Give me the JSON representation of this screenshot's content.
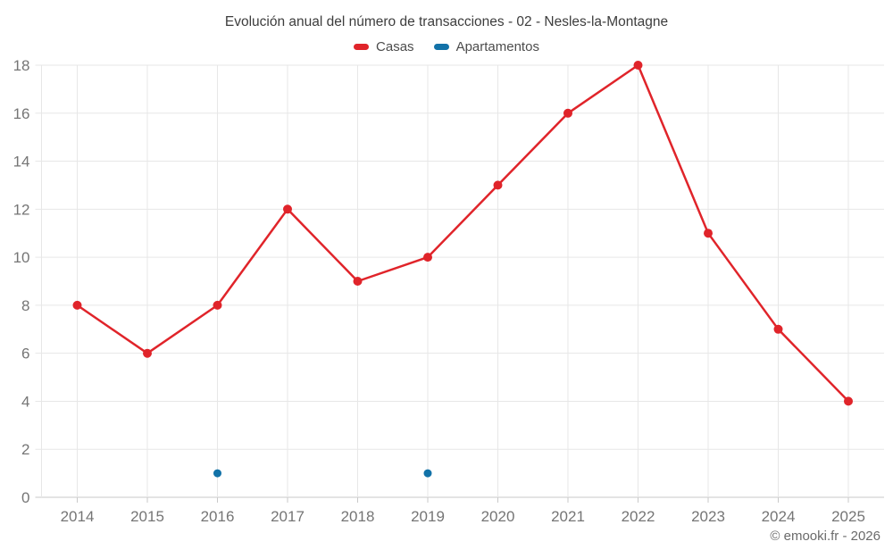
{
  "page": {
    "footer_credit": "© emooki.fr - 2026"
  },
  "colors": {
    "background": "#ffffff",
    "grid": "#e7e7e7",
    "axis": "#c9c9c9",
    "tick_text": "#757575",
    "title_text": "#3d3d3d",
    "legend_text": "#4c4c4c",
    "footer_text": "#6b6b6b",
    "casas_red": "#e0242a",
    "apartamentos_blue": "#1272a8"
  },
  "chart_data": {
    "type": "line",
    "title": "Evolución anual del número de transacciones - 02 - Nesles-la-Montagne",
    "xlabel": "",
    "ylabel": "",
    "x": [
      2014,
      2015,
      2016,
      2017,
      2018,
      2019,
      2020,
      2021,
      2022,
      2023,
      2024,
      2025
    ],
    "series": [
      {
        "name": "Casas",
        "color": "#e0242a",
        "values": [
          8,
          6,
          8,
          12,
          9,
          10,
          13,
          16,
          18,
          11,
          7,
          4
        ]
      },
      {
        "name": "Apartamentos",
        "color": "#1272a8",
        "values": [
          null,
          null,
          1,
          null,
          null,
          1,
          null,
          null,
          null,
          null,
          null,
          null
        ]
      }
    ],
    "ylim": [
      0,
      18
    ],
    "ytick_step": 2,
    "grid": true,
    "legend_position": "top"
  }
}
